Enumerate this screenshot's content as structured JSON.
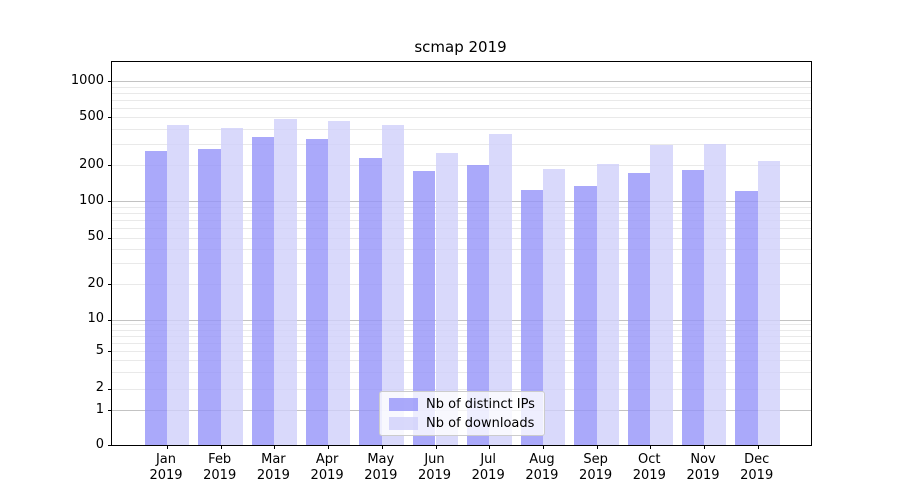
{
  "title": "scmap 2019",
  "chart_data": {
    "type": "bar",
    "title": "scmap 2019",
    "x_labels": [
      {
        "month": "Jan",
        "year": "2019"
      },
      {
        "month": "Feb",
        "year": "2019"
      },
      {
        "month": "Mar",
        "year": "2019"
      },
      {
        "month": "Apr",
        "year": "2019"
      },
      {
        "month": "May",
        "year": "2019"
      },
      {
        "month": "Jun",
        "year": "2019"
      },
      {
        "month": "Jul",
        "year": "2019"
      },
      {
        "month": "Aug",
        "year": "2019"
      },
      {
        "month": "Sep",
        "year": "2019"
      },
      {
        "month": "Oct",
        "year": "2019"
      },
      {
        "month": "Nov",
        "year": "2019"
      },
      {
        "month": "Dec",
        "year": "2019"
      }
    ],
    "series": [
      {
        "name": "Nb of distinct IPs",
        "color_hex": "#aaa9fa",
        "fill": "rgba(149,148,249,0.8)",
        "values": [
          262,
          271,
          344,
          331,
          230,
          180,
          202,
          123,
          133,
          172,
          181,
          121
        ]
      },
      {
        "name": "Nb of downloads",
        "color_hex": "#d9d9fb",
        "fill": "rgba(208,208,250,0.8)",
        "values": [
          430,
          402,
          483,
          465,
          428,
          251,
          360,
          186,
          205,
          295,
          301,
          218
        ]
      }
    ],
    "y_scale": "symlog",
    "y_tick_labels": [
      "0",
      "1",
      "2",
      "5",
      "10",
      "20",
      "50",
      "100",
      "200",
      "500",
      "1000"
    ],
    "y_ticks": [
      0,
      1,
      2,
      5,
      10,
      20,
      50,
      100,
      200,
      500,
      1000
    ],
    "ylim": [
      0,
      1360
    ],
    "xlabel": "",
    "ylabel": "",
    "legend_position": "lower center",
    "grid": "horizontal major and minor"
  }
}
